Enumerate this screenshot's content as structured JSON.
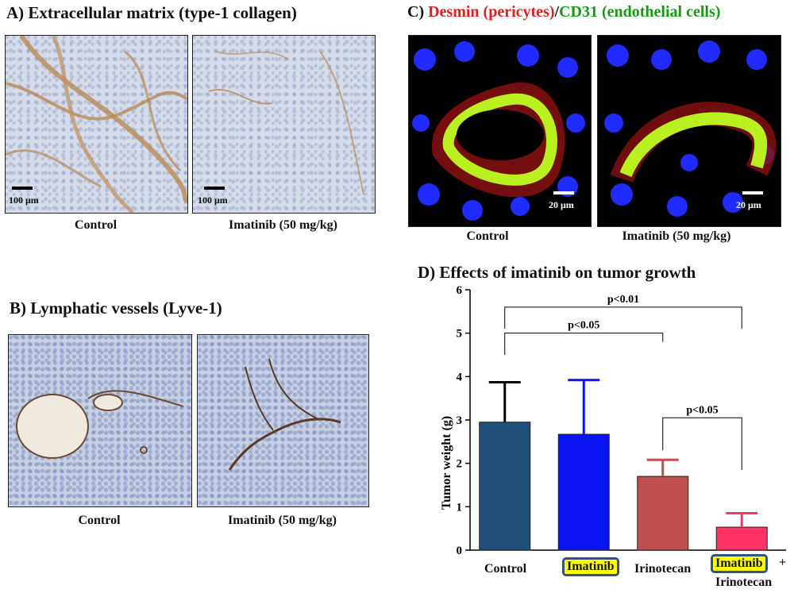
{
  "panelA": {
    "title": "A) Extracellular matrix (type-1 collagen)",
    "scale": "100 μm",
    "captions": [
      "Control",
      "Imatinib (50 mg/kg)"
    ]
  },
  "panelB": {
    "title": "B) Lymphatic vessels (Lyve-1)",
    "captions": [
      "Control",
      "Imatinib (50 mg/kg)"
    ]
  },
  "panelC": {
    "title_prefix": "C)",
    "title_red": "Desmin (pericytes)",
    "title_sep": "/",
    "title_green": "CD31 (endothelial cells)",
    "scale": "20 μm",
    "captions": [
      "Control",
      "Imatinib (50 mg/kg)"
    ]
  },
  "panelD": {
    "title": "D) Effects of imatinib on tumor growth",
    "category_labels": {
      "control": "Control",
      "imatinib": "Imatinib",
      "irinotecan": "Irinotecan",
      "combo_top": "Imatinib",
      "combo_plus": "+",
      "combo_bottom": "Irinotecan"
    },
    "significance": [
      "p<0.01",
      "p<0.05",
      "p<0.05"
    ]
  },
  "chart_data": {
    "type": "bar",
    "title": "Effects of imatinib on tumor growth",
    "ylabel": "Tumor weight (g)",
    "ylim": [
      0,
      6
    ],
    "yticks": [
      0,
      1,
      2,
      3,
      4,
      5,
      6
    ],
    "categories": [
      "Control",
      "Imatinib",
      "Irinotecan",
      "Imatinib + Irinotecan"
    ],
    "values": [
      2.95,
      2.67,
      1.7,
      0.53
    ],
    "errors": [
      0.92,
      1.25,
      0.38,
      0.32
    ],
    "colors": [
      "#1f4e79",
      "#0a14f0",
      "#c0504d",
      "#ff3366"
    ],
    "error_colors": [
      "#000000",
      "#0a14f0",
      "#c0504d",
      "#ff3366"
    ],
    "comparisons": [
      {
        "from": "Control",
        "to": "Imatinib + Irinotecan",
        "label": "p<0.01"
      },
      {
        "from": "Control",
        "to": "Irinotecan",
        "label": "p<0.05"
      },
      {
        "from": "Irinotecan",
        "to": "Imatinib + Irinotecan",
        "label": "p<0.05"
      }
    ]
  }
}
